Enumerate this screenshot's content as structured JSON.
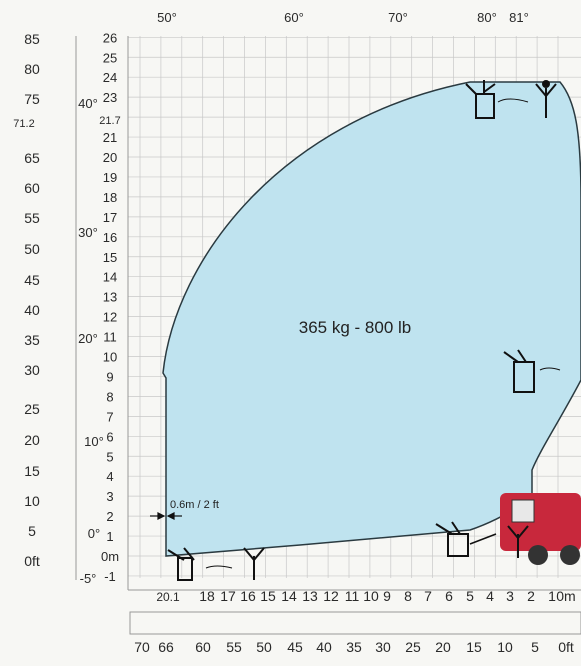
{
  "diagram": {
    "load_label": "365 kg - 800 lb",
    "offset_label": "0.6m / 2 ft",
    "angle_labels_top": [
      "50°",
      "60°",
      "70°",
      "80°",
      "81°"
    ],
    "angle_labels_side": [
      "40°",
      "30°",
      "20°",
      "10°",
      "0°",
      "-5°"
    ],
    "left_ft_ticks": [
      "85",
      "80",
      "75",
      "71.2",
      "65",
      "60",
      "55",
      "50",
      "45",
      "40",
      "35",
      "30",
      "25",
      "20",
      "15",
      "10",
      "5",
      "0ft"
    ],
    "height_m_ticks": [
      "26",
      "25",
      "24",
      "23",
      "21.7",
      "21",
      "20",
      "19",
      "18",
      "17",
      "16",
      "15",
      "14",
      "13",
      "12",
      "11",
      "10",
      "9",
      "8",
      "7",
      "6",
      "5",
      "4",
      "3",
      "2",
      "1",
      "0m",
      "-1"
    ],
    "reach_m_ticks": [
      "20.1",
      "18",
      "17",
      "16",
      "15",
      "14",
      "13",
      "12",
      "11",
      "10",
      "9",
      "8",
      "7",
      "6",
      "5",
      "4",
      "3",
      "2",
      "1",
      "0m"
    ],
    "reach_ft_ticks": [
      "70",
      "66",
      "60",
      "55",
      "50",
      "45",
      "40",
      "35",
      "30",
      "25",
      "20",
      "15",
      "10",
      "5",
      "0ft"
    ]
  },
  "colors": {
    "envelope": "#bfe3ef",
    "envelope_stroke": "#2a3a40",
    "grid": "#c8c8c8",
    "machine": "#c8283c"
  }
}
